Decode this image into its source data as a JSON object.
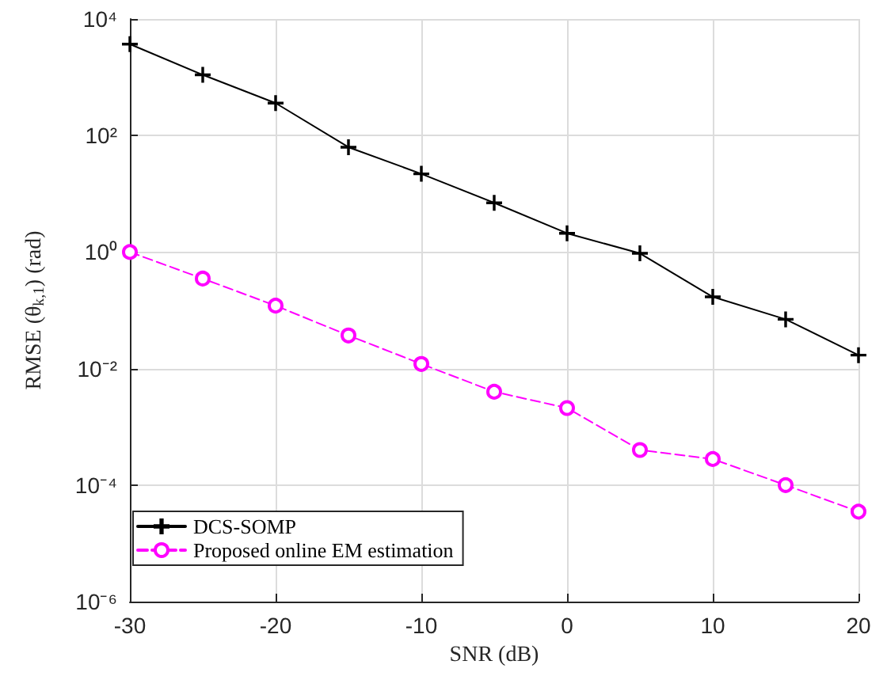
{
  "chart_data": {
    "type": "line",
    "xlabel": "SNR (dB)",
    "ylabel": "RMSE (θ$_{k,1}$) (rad)",
    "x": [
      -30,
      -25,
      -20,
      -15,
      -10,
      -5,
      0,
      5,
      10,
      15,
      20
    ],
    "series": [
      {
        "name": "DCS-SOMP",
        "color": "#000000",
        "marker": "cross",
        "line_style": "solid",
        "values": [
          3700,
          1100,
          360,
          63,
          22,
          7,
          2.1,
          0.95,
          0.17,
          0.07,
          0.017
        ]
      },
      {
        "name": "Proposed online EM estimation",
        "color": "#ff00ff",
        "marker": "circle",
        "line_style": "dashed",
        "values": [
          1.0,
          0.35,
          0.12,
          0.037,
          0.012,
          0.004,
          0.0021,
          0.0004,
          0.00028,
          0.0001,
          3.5e-05
        ]
      }
    ],
    "log": "y",
    "xlim": [
      -30,
      20
    ],
    "xticks": [
      -30,
      -20,
      -10,
      0,
      10,
      20
    ],
    "ylim": [
      1e-06,
      10000
    ],
    "yticks": [
      {
        "value": 1e-06,
        "label": "10⁻⁶"
      },
      {
        "value": 0.0001,
        "label": "10⁻⁴"
      },
      {
        "value": 0.01,
        "label": "10⁻²"
      },
      {
        "value": 1,
        "label": "10⁰"
      },
      {
        "value": 100,
        "label": "10²"
      },
      {
        "value": 10000,
        "label": "10⁴"
      }
    ],
    "grid": true,
    "legend": "bottom left"
  }
}
